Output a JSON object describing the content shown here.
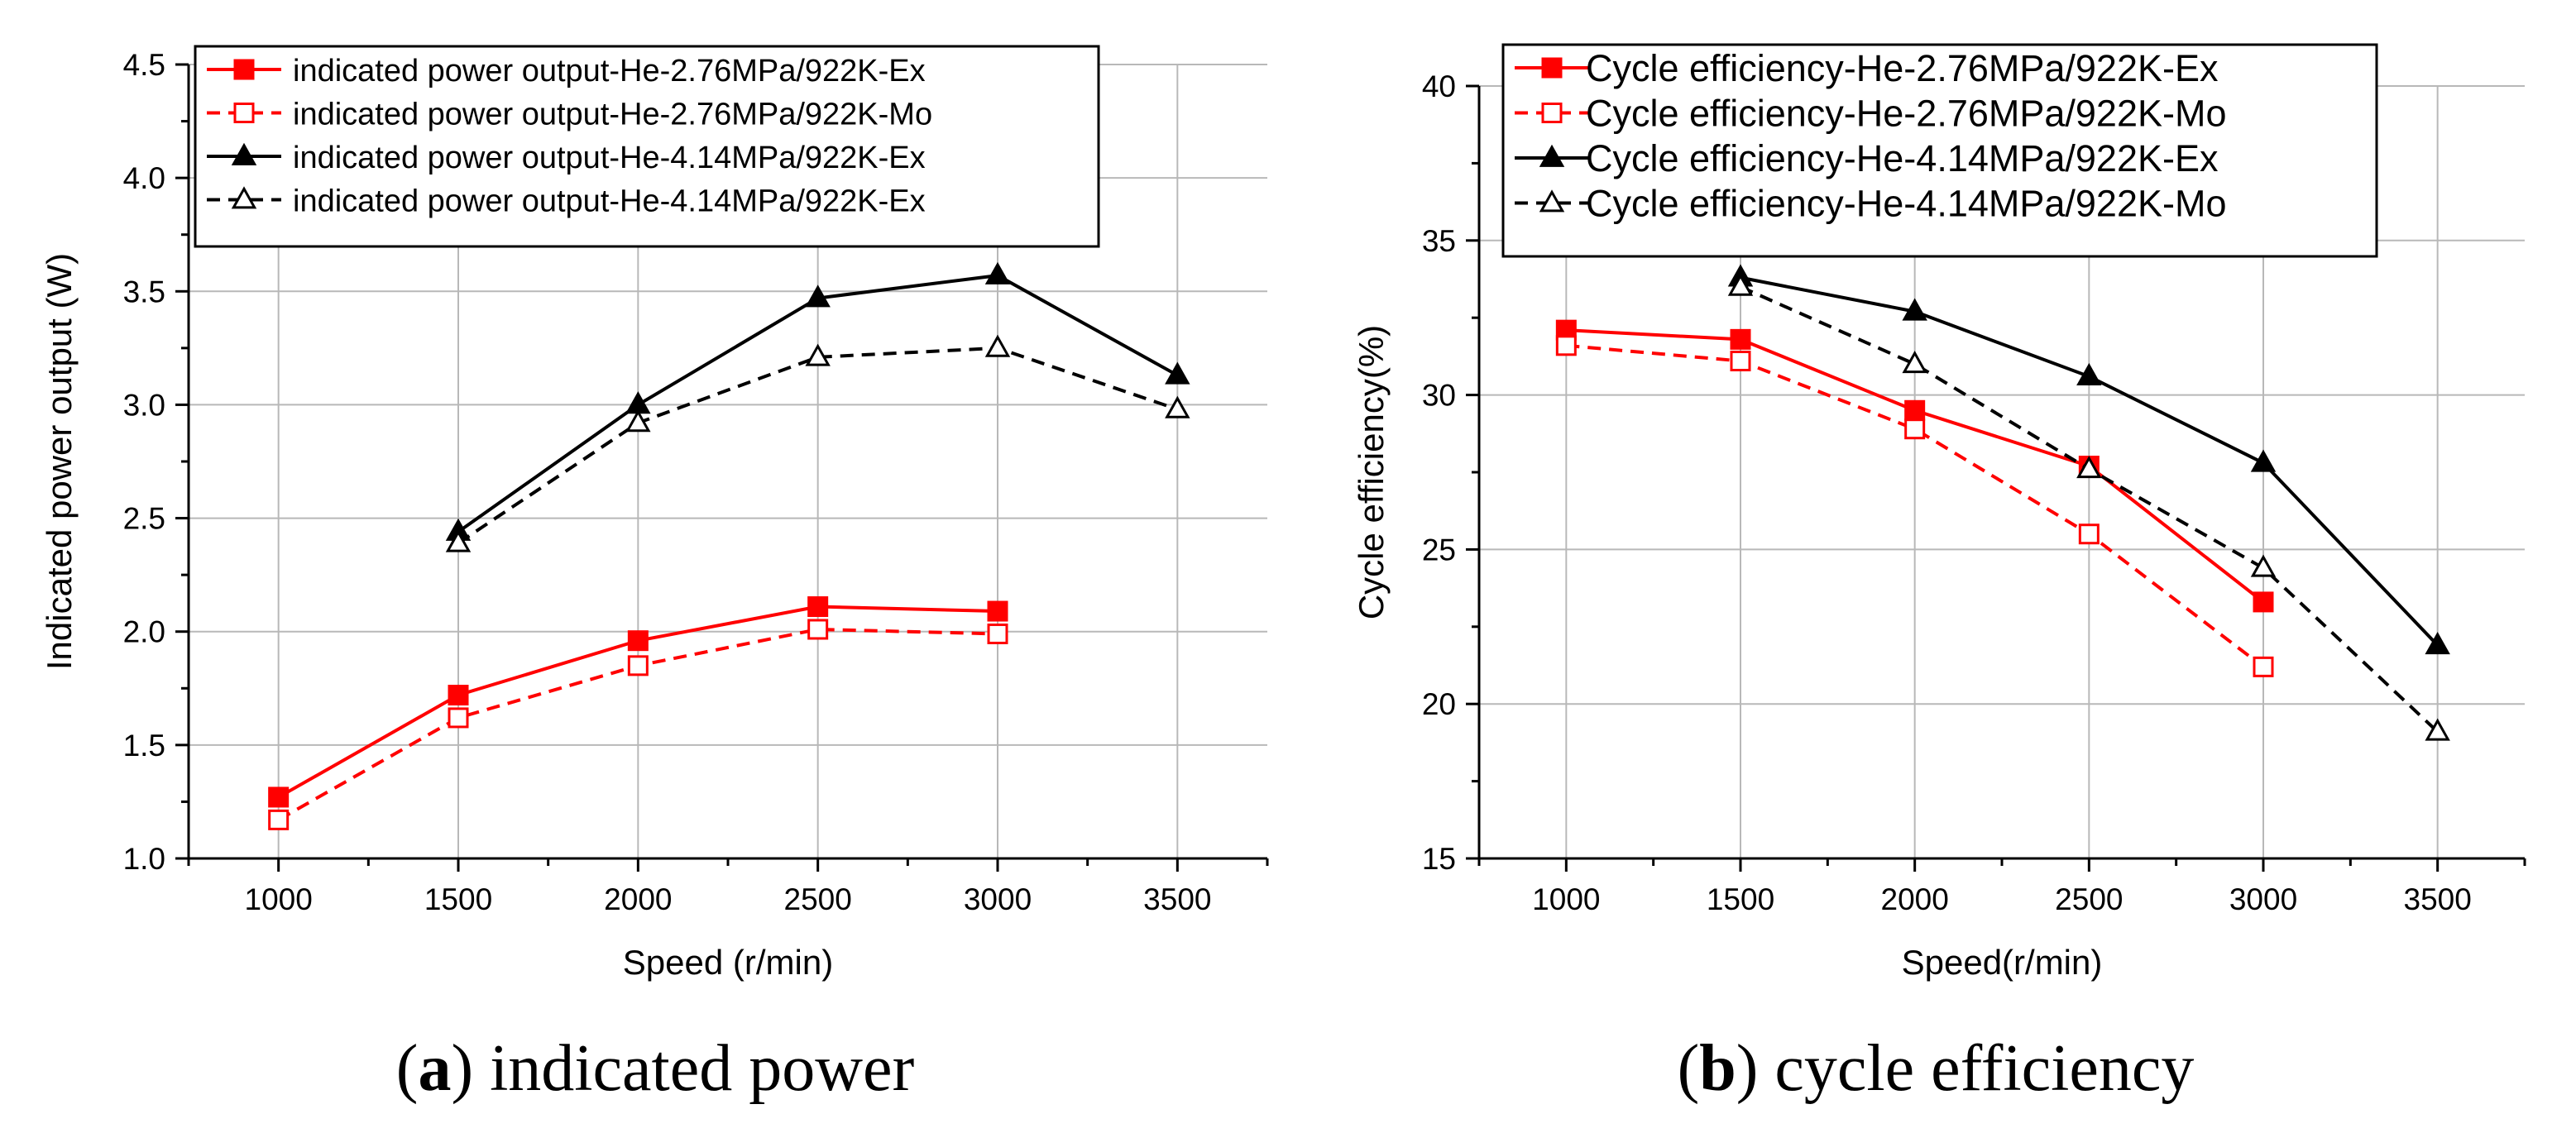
{
  "chart_data": [
    {
      "type": "line",
      "panel": "a",
      "caption_letter": "a",
      "caption_text": "indicated power",
      "title": "",
      "xlabel": "Speed  (r/min)",
      "ylabel": "Indicated power output  (W)",
      "xlim": [
        750,
        3750
      ],
      "ylim": [
        1.0,
        4.5
      ],
      "xticks": [
        1000,
        1500,
        2000,
        2500,
        3000,
        3500
      ],
      "yticks": [
        1.0,
        1.5,
        2.0,
        2.5,
        3.0,
        3.5,
        4.0,
        4.5
      ],
      "ytick_labels": [
        "1.0",
        "1.5",
        "2.0",
        "2.5",
        "3.0",
        "3.5",
        "4.0",
        "4.5"
      ],
      "grid": true,
      "legend_position": "top",
      "series": [
        {
          "name": "indicated power output-He-2.76MPa/922K-Ex",
          "color": "#ff0000",
          "dash": "solid",
          "marker": "square",
          "filled": true,
          "x": [
            1000,
            1500,
            2000,
            2500,
            3000
          ],
          "values": [
            1.27,
            1.72,
            1.96,
            2.11,
            2.09
          ]
        },
        {
          "name": "indicated power output-He-2.76MPa/922K-Mo",
          "color": "#ff0000",
          "dash": "dashed",
          "marker": "square",
          "filled": false,
          "x": [
            1000,
            1500,
            2000,
            2500,
            3000
          ],
          "values": [
            1.17,
            1.62,
            1.85,
            2.01,
            1.99
          ]
        },
        {
          "name": "indicated power output-He-4.14MPa/922K-Ex",
          "color": "#000000",
          "dash": "solid",
          "marker": "triangle",
          "filled": true,
          "x": [
            1500,
            2000,
            2500,
            3000,
            3500
          ],
          "values": [
            2.44,
            3.0,
            3.47,
            3.57,
            3.13
          ]
        },
        {
          "name": "indicated power output-He-4.14MPa/922K-Ex",
          "color": "#000000",
          "dash": "dashed",
          "marker": "triangle",
          "filled": false,
          "x": [
            1500,
            2000,
            2500,
            3000,
            3500
          ],
          "values": [
            2.39,
            2.92,
            3.21,
            3.25,
            2.98
          ]
        }
      ]
    },
    {
      "type": "line",
      "panel": "b",
      "caption_letter": "b",
      "caption_text": "cycle efficiency",
      "title": "",
      "xlabel": "Speed(r/min)",
      "ylabel": "Cycle efficiency(%)",
      "xlim": [
        750,
        3750
      ],
      "ylim": [
        15,
        40
      ],
      "xticks": [
        1000,
        1500,
        2000,
        2500,
        3000,
        3500
      ],
      "yticks": [
        15,
        20,
        25,
        30,
        35,
        40
      ],
      "ytick_labels": [
        "15",
        "20",
        "25",
        "30",
        "35",
        "40"
      ],
      "grid": true,
      "legend_position": "top",
      "series": [
        {
          "name": "Cycle efficiency-He-2.76MPa/922K-Ex",
          "color": "#ff0000",
          "dash": "solid",
          "marker": "square",
          "filled": true,
          "x": [
            1000,
            1500,
            2000,
            2500,
            3000
          ],
          "values": [
            32.1,
            31.8,
            29.5,
            27.7,
            23.3
          ]
        },
        {
          "name": "Cycle efficiency-He-2.76MPa/922K-Mo",
          "color": "#ff0000",
          "dash": "dashed",
          "marker": "square",
          "filled": false,
          "x": [
            1000,
            1500,
            2000,
            2500,
            3000
          ],
          "values": [
            31.6,
            31.1,
            28.9,
            25.5,
            21.2
          ]
        },
        {
          "name": "Cycle efficiency-He-4.14MPa/922K-Ex",
          "color": "#000000",
          "dash": "solid",
          "marker": "triangle",
          "filled": true,
          "x": [
            1500,
            2000,
            2500,
            3000,
            3500
          ],
          "values": [
            33.8,
            32.7,
            30.6,
            27.8,
            21.9
          ]
        },
        {
          "name": "Cycle efficiency-He-4.14MPa/922K-Mo",
          "color": "#000000",
          "dash": "dashed",
          "marker": "triangle",
          "filled": false,
          "x": [
            1500,
            2000,
            2500,
            3000,
            3500
          ],
          "values": [
            33.5,
            31.0,
            27.6,
            24.4,
            19.1
          ]
        }
      ]
    }
  ]
}
